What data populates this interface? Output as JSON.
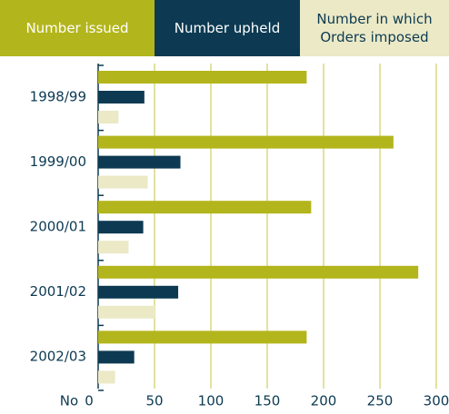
{
  "chart_data": {
    "type": "bar",
    "orientation": "horizontal",
    "categories": [
      "1998/99",
      "1999/00",
      "2000/01",
      "2001/02",
      "2002/03"
    ],
    "series": [
      {
        "name": "Number issued",
        "color": "#b3b51c",
        "values": [
          185,
          262,
          189,
          284,
          185
        ]
      },
      {
        "name": "Number upheld",
        "color": "#0d3a52",
        "values": [
          41,
          73,
          40,
          71,
          32
        ]
      },
      {
        "name": "Number in which Orders imposed",
        "color": "#ebe9c6",
        "values": [
          18,
          44,
          27,
          51,
          15
        ]
      }
    ],
    "xlabel": "No",
    "xlim": [
      0,
      300
    ],
    "xticks": [
      0,
      50,
      100,
      150,
      200,
      250,
      300
    ],
    "grid": true,
    "legend": "top"
  }
}
